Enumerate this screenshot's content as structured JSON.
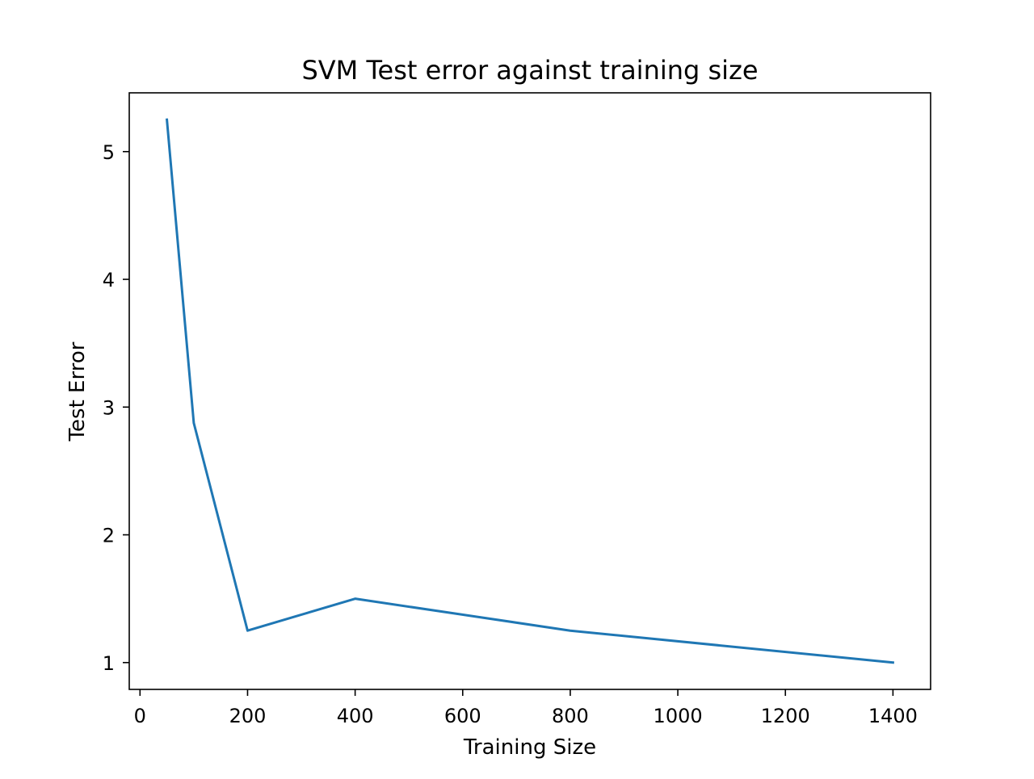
{
  "chart_data": {
    "type": "line",
    "title": "SVM Test error against training size",
    "xlabel": "Training Size",
    "ylabel": "Test Error",
    "xlim": [
      -20,
      1470
    ],
    "ylim": [
      0.79,
      5.46
    ],
    "xticks": [
      0,
      200,
      400,
      600,
      800,
      1000,
      1200,
      1400
    ],
    "yticks": [
      1,
      2,
      3,
      4,
      5
    ],
    "grid": false,
    "series": [
      {
        "color": "#1f77b4",
        "x": [
          50,
          100,
          200,
          400,
          800,
          1400
        ],
        "y": [
          5.25,
          2.875,
          1.25,
          1.5,
          1.25,
          1.0
        ]
      }
    ]
  }
}
